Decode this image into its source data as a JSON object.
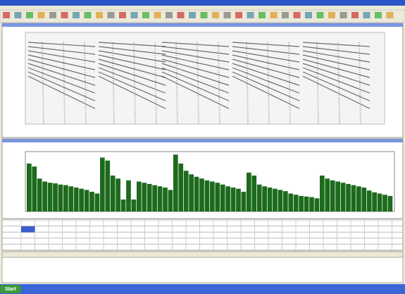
{
  "taskbar": {
    "start": "Start"
  },
  "amplitude_chart": {
    "type": "bar",
    "color": "#1d6a1d",
    "ylim": [
      0,
      100
    ],
    "values": [
      80,
      75,
      55,
      50,
      48,
      47,
      45,
      44,
      42,
      40,
      38,
      36,
      33,
      30,
      90,
      85,
      60,
      55,
      20,
      52,
      20,
      50,
      48,
      46,
      44,
      42,
      40,
      36,
      95,
      80,
      68,
      62,
      58,
      55,
      52,
      50,
      48,
      45,
      42,
      40,
      38,
      33,
      65,
      60,
      45,
      42,
      40,
      38,
      36,
      34,
      30,
      28,
      26,
      25,
      24,
      22,
      60,
      55,
      52,
      50,
      48,
      46,
      44,
      42,
      40,
      35,
      32,
      30,
      28,
      26
    ]
  }
}
